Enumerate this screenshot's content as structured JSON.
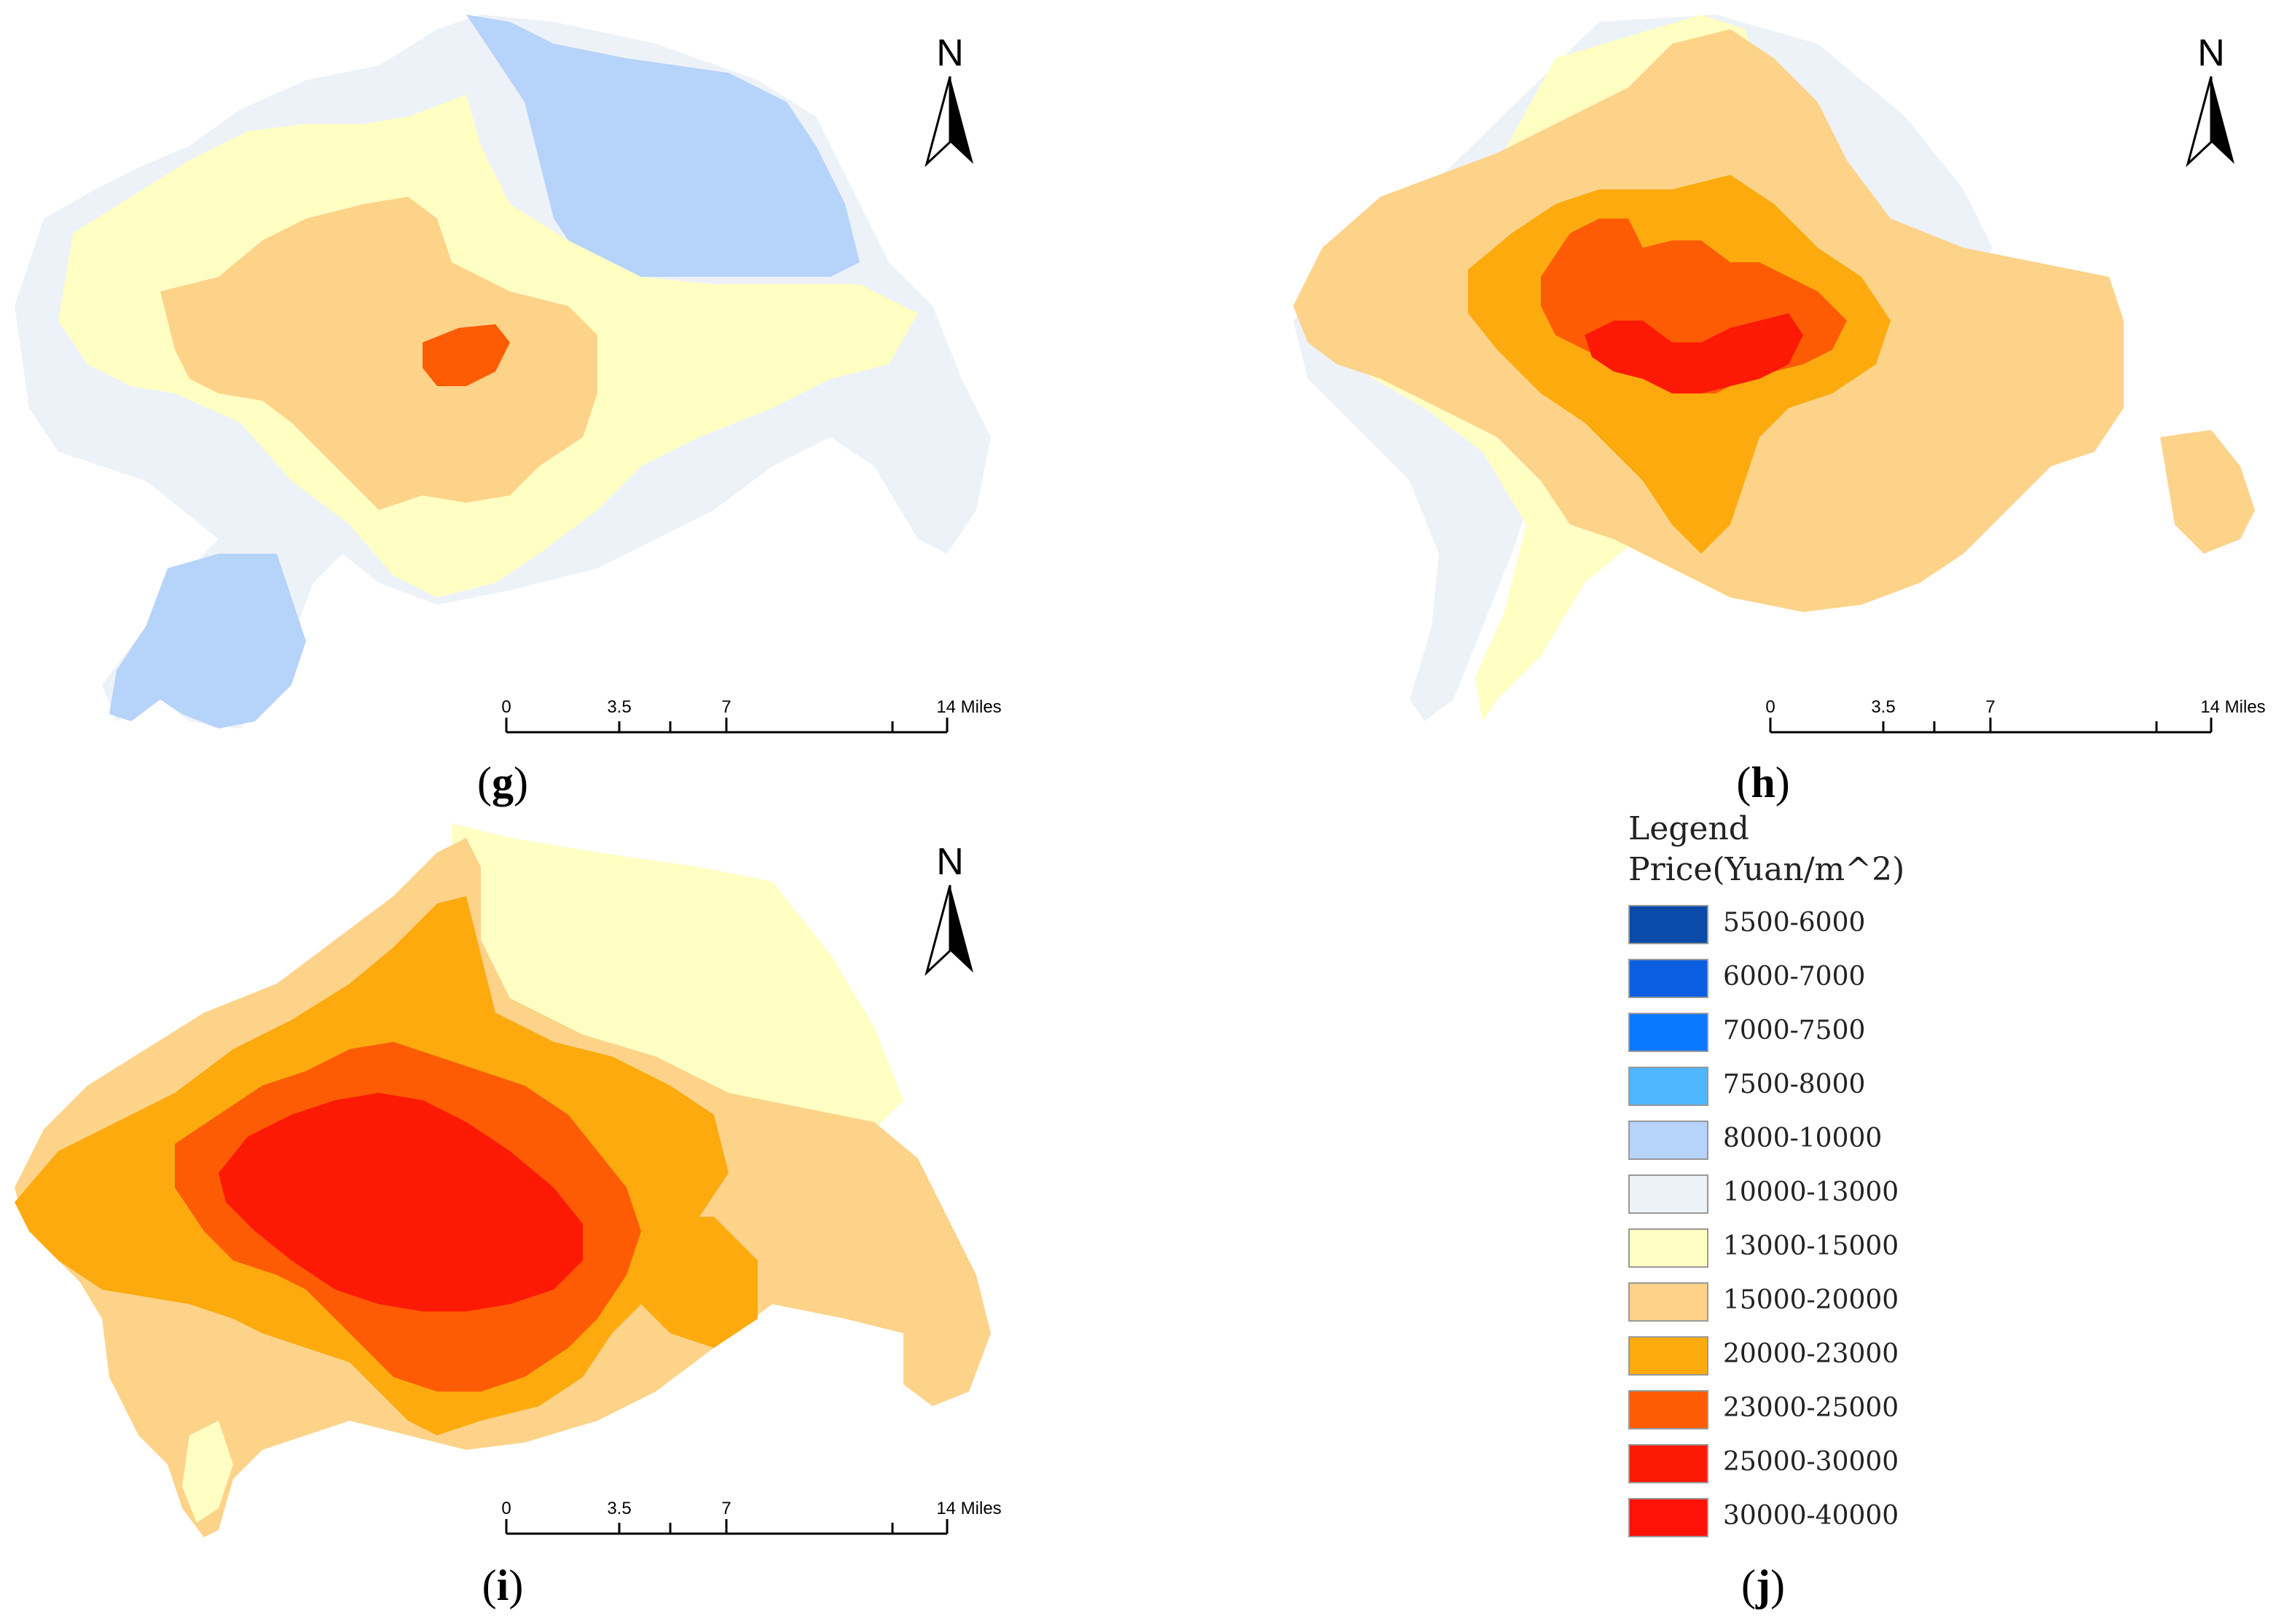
{
  "maps": [
    {
      "id": "g",
      "caption": "g",
      "north_label": "N",
      "scale_labels": [
        "0",
        "3.5",
        "7",
        "14 Miles"
      ],
      "zones": [
        {
          "class": "10000-13000"
        },
        {
          "class": "8000-10000"
        },
        {
          "class": "13000-15000"
        },
        {
          "class": "15000-20000"
        },
        {
          "class": "23000-25000"
        }
      ]
    },
    {
      "id": "h",
      "caption": "h",
      "north_label": "N",
      "scale_labels": [
        "0",
        "3.5",
        "7",
        "14 Miles"
      ],
      "zones": [
        {
          "class": "10000-13000"
        },
        {
          "class": "13000-15000"
        },
        {
          "class": "15000-20000"
        },
        {
          "class": "20000-23000"
        },
        {
          "class": "23000-25000"
        },
        {
          "class": "25000-30000"
        }
      ]
    },
    {
      "id": "i",
      "caption": "i",
      "north_label": "N",
      "scale_labels": [
        "0",
        "3.5",
        "7",
        "14 Miles"
      ],
      "zones": [
        {
          "class": "13000-15000"
        },
        {
          "class": "15000-20000"
        },
        {
          "class": "20000-23000"
        },
        {
          "class": "23000-25000"
        },
        {
          "class": "25000-30000"
        }
      ]
    }
  ],
  "legend": {
    "caption": "j",
    "title": "Legend",
    "subtitle": "Price(Yuan/m^2)",
    "items": [
      {
        "label": "5500-6000",
        "color": "#0a4aa8"
      },
      {
        "label": "6000-7000",
        "color": "#0c5ee0"
      },
      {
        "label": "7000-7500",
        "color": "#0a78ff"
      },
      {
        "label": "7500-8000",
        "color": "#4db6ff"
      },
      {
        "label": "8000-10000",
        "color": "#b6d3fa"
      },
      {
        "label": "10000-13000",
        "color": "#edf2f8"
      },
      {
        "label": "13000-15000",
        "color": "#ffffc4"
      },
      {
        "label": "15000-20000",
        "color": "#fdd38a"
      },
      {
        "label": "20000-23000",
        "color": "#fcaa0e"
      },
      {
        "label": "23000-25000",
        "color": "#fd5c04"
      },
      {
        "label": "25000-30000",
        "color": "#fd1a05"
      },
      {
        "label": "30000-40000",
        "color": "#fe1208"
      }
    ]
  }
}
